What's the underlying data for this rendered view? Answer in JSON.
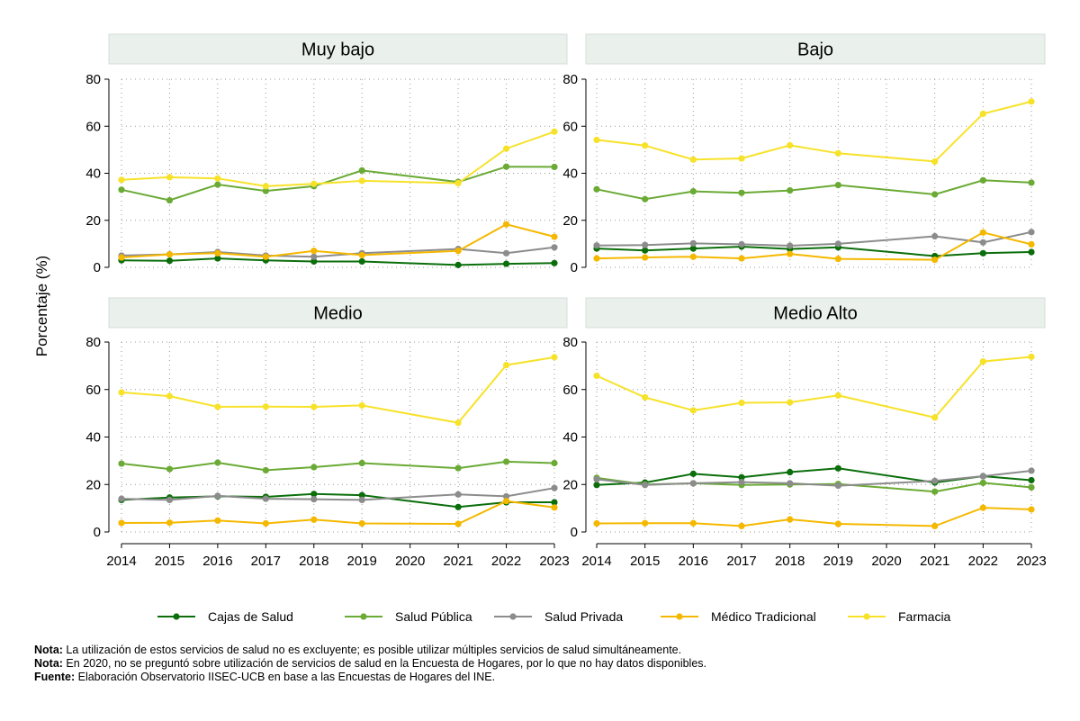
{
  "chart_data": {
    "type": "line",
    "ylabel": "Porcentaje (%)",
    "ylim": [
      0,
      80
    ],
    "yticks": [
      0,
      20,
      40,
      60,
      80
    ],
    "x": [
      "2014",
      "2015",
      "2016",
      "2017",
      "2018",
      "2019",
      "2020",
      "2021",
      "2022",
      "2023"
    ],
    "series_meta": [
      {
        "name": "Cajas de Salud",
        "color": "#0b6e0b"
      },
      {
        "name": "Salud Pública",
        "color": "#6aaa35"
      },
      {
        "name": "Salud Privada",
        "color": "#8c8c8c"
      },
      {
        "name": "Médico Tradicional",
        "color": "#f5b800"
      },
      {
        "name": "Farmacia",
        "color": "#f7e22a"
      }
    ],
    "panels": [
      {
        "title": "Muy bajo",
        "series": [
          {
            "name": "Cajas de Salud",
            "values": [
              3,
              2.8,
              3.8,
              3,
              2.5,
              2.5,
              null,
              1,
              1.5,
              1.8
            ]
          },
          {
            "name": "Salud Pública",
            "values": [
              33,
              28.5,
              35.2,
              32.5,
              34.5,
              41.2,
              null,
              36.3,
              42.8,
              42.7
            ]
          },
          {
            "name": "Salud Privada",
            "values": [
              5,
              5.5,
              6.5,
              5,
              4.5,
              6,
              null,
              7.8,
              6,
              8.5
            ]
          },
          {
            "name": "Médico Tradicional",
            "values": [
              4.2,
              5.5,
              6,
              4.5,
              7,
              5.2,
              null,
              7,
              18.3,
              13
            ]
          },
          {
            "name": "Farmacia",
            "values": [
              37.2,
              38.3,
              37.8,
              34.5,
              35.5,
              36.8,
              null,
              35.8,
              50.5,
              57.7
            ]
          }
        ]
      },
      {
        "title": "Bajo",
        "series": [
          {
            "name": "Cajas de Salud",
            "values": [
              8,
              7.2,
              8,
              8.8,
              7.8,
              8.5,
              null,
              4.8,
              6,
              6.5
            ]
          },
          {
            "name": "Salud Pública",
            "values": [
              33.2,
              29,
              32.3,
              31.7,
              32.7,
              35,
              null,
              31,
              37,
              36
            ]
          },
          {
            "name": "Salud Privada",
            "values": [
              9.3,
              9.5,
              10.2,
              9.8,
              9.2,
              10,
              null,
              13.2,
              10.6,
              15
            ]
          },
          {
            "name": "Médico Tradicional",
            "values": [
              3.8,
              4.2,
              4.5,
              3.8,
              5.7,
              3.6,
              null,
              3.2,
              14.8,
              9.8
            ]
          },
          {
            "name": "Farmacia",
            "values": [
              54.2,
              51.8,
              45.8,
              46.3,
              51.9,
              48.5,
              null,
              45,
              65.3,
              70.5
            ]
          }
        ]
      },
      {
        "title": "Medio",
        "series": [
          {
            "name": "Cajas de Salud",
            "values": [
              13.5,
              14.5,
              15,
              14.8,
              16,
              15.5,
              null,
              10.5,
              12.5,
              12.5
            ]
          },
          {
            "name": "Salud Pública",
            "values": [
              28.8,
              26.5,
              29.2,
              26,
              27.3,
              29,
              null,
              26.9,
              29.6,
              29
            ]
          },
          {
            "name": "Salud Privada",
            "values": [
              14,
              13.5,
              15.2,
              14,
              13.8,
              13.5,
              null,
              15.8,
              15,
              18.5
            ]
          },
          {
            "name": "Médico Tradicional",
            "values": [
              3.8,
              3.9,
              4.8,
              3.6,
              5.2,
              3.6,
              null,
              3.4,
              13,
              10.3
            ]
          },
          {
            "name": "Farmacia",
            "values": [
              58.8,
              57.2,
              52.7,
              52.8,
              52.7,
              53.3,
              null,
              46,
              70.3,
              73.6
            ]
          }
        ]
      },
      {
        "title": "Medio Alto",
        "series": [
          {
            "name": "Cajas de Salud",
            "values": [
              19.8,
              20.8,
              24.5,
              23,
              25.2,
              26.8,
              null,
              20.8,
              23.5,
              21.8
            ]
          },
          {
            "name": "Salud Pública",
            "values": [
              22.8,
              20,
              20.5,
              19.8,
              20,
              20.2,
              null,
              17,
              20.7,
              18.8
            ]
          },
          {
            "name": "Salud Privada",
            "values": [
              22.2,
              19.8,
              20.5,
              21,
              20.5,
              19.5,
              null,
              21.5,
              23.5,
              25.8
            ]
          },
          {
            "name": "Médico Tradicional",
            "values": [
              3.6,
              3.7,
              3.7,
              2.5,
              5.3,
              3.4,
              null,
              2.5,
              10.2,
              9.5
            ]
          },
          {
            "name": "Farmacia",
            "values": [
              65.8,
              56.7,
              51.2,
              54.4,
              54.6,
              57.5,
              null,
              48.2,
              71.8,
              73.8
            ]
          }
        ]
      }
    ]
  },
  "notes": [
    {
      "label": "Nota:",
      "text": " La utilización de estos servicios de salud no es excluyente; es posible utilizar múltiples servicios de salud simultáneamente."
    },
    {
      "label": "Nota:",
      "text": " En 2020, no se preguntó sobre utilización de servicios de salud en la Encuesta de Hogares, por lo que no hay datos disponibles."
    },
    {
      "label": "Fuente:",
      "text": " Elaboración Observatorio IISEC-UCB en base a las Encuestas de Hogares del INE."
    }
  ]
}
